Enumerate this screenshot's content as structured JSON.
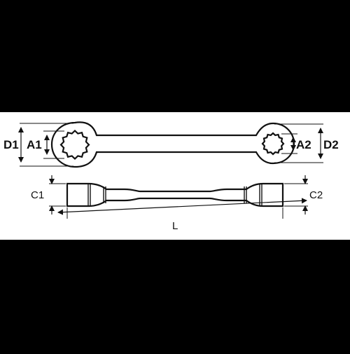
{
  "labels": {
    "d1": "D1",
    "a1": "A1",
    "a2": "A2",
    "d2": "D2",
    "c1": "C1",
    "c2": "C2",
    "l": "L"
  }
}
